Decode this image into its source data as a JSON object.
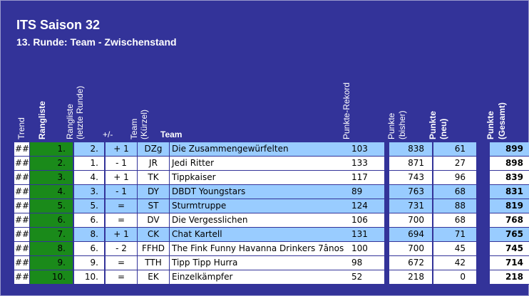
{
  "header": {
    "title": "ITS Saison 32",
    "subtitle": "13. Runde: Team - Zwischenstand"
  },
  "columns": {
    "trend": "Trend",
    "rangliste": "Rangliste",
    "letzte_1": "Rangliste",
    "letzte_2": "(letzte Runde)",
    "diff": "+/-",
    "kurz_1": "Team",
    "kurz_2": "(Kürzel)",
    "team": "Team",
    "rekord": "Punkte-Rekord",
    "bisher_1": "Punkte",
    "bisher_2": "(bisher)",
    "neu_1": "Punkte",
    "neu_2": "(neu)",
    "gesamt_1": "Punkte",
    "gesamt_2": "(Gesamt)"
  },
  "rows": [
    {
      "trend": "##",
      "rank": "1.",
      "prev": "2.",
      "diff": "+ 1",
      "kurz": "DZg",
      "team": "Die Zusammengewürfelten",
      "rekord": "103",
      "bisher": "838",
      "neu": "61",
      "gesamt": "899",
      "style": "blue"
    },
    {
      "trend": "##",
      "rank": "2.",
      "prev": "1.",
      "diff": "- 1",
      "kurz": "JR",
      "team": "Jedi Ritter",
      "rekord": "133",
      "bisher": "871",
      "neu": "27",
      "gesamt": "898",
      "style": "light"
    },
    {
      "trend": "##",
      "rank": "3.",
      "prev": "4.",
      "diff": "+ 1",
      "kurz": "TK",
      "team": "Tippkaiser",
      "rekord": "117",
      "bisher": "743",
      "neu": "96",
      "gesamt": "839",
      "style": "light"
    },
    {
      "trend": "##",
      "rank": "4.",
      "prev": "3.",
      "diff": "- 1",
      "kurz": "DY",
      "team": "DBDT Youngstars",
      "rekord": "89",
      "bisher": "763",
      "neu": "68",
      "gesamt": "831",
      "style": "blue"
    },
    {
      "trend": "##",
      "rank": "5.",
      "prev": "5.",
      "diff": "=",
      "kurz": "ST",
      "team": "Sturmtruppe",
      "rekord": "124",
      "bisher": "731",
      "neu": "88",
      "gesamt": "819",
      "style": "blue"
    },
    {
      "trend": "##",
      "rank": "6.",
      "prev": "6.",
      "diff": "=",
      "kurz": "DV",
      "team": "Die Vergesslichen",
      "rekord": "106",
      "bisher": "700",
      "neu": "68",
      "gesamt": "768",
      "style": "light"
    },
    {
      "trend": "##",
      "rank": "7.",
      "prev": "8.",
      "diff": "+ 1",
      "kurz": "CK",
      "team": "Chat Kartell",
      "rekord": "131",
      "bisher": "694",
      "neu": "71",
      "gesamt": "765",
      "style": "blue"
    },
    {
      "trend": "##",
      "rank": "8.",
      "prev": "6.",
      "diff": "- 2",
      "kurz": "FFHD",
      "team": "The Fink Funny Havanna Drinkers 7ânos",
      "rekord": "100",
      "bisher": "700",
      "neu": "45",
      "gesamt": "745",
      "style": "light"
    },
    {
      "trend": "##",
      "rank": "9.",
      "prev": "9.",
      "diff": "=",
      "kurz": "TTH",
      "team": "Tipp Tipp Hurra",
      "rekord": "98",
      "bisher": "672",
      "neu": "42",
      "gesamt": "714",
      "style": "light"
    },
    {
      "trend": "##",
      "rank": "10.",
      "prev": "10.",
      "diff": "=",
      "kurz": "EK",
      "team": "Einzelkämpfer",
      "rekord": "52",
      "bisher": "218",
      "neu": "0",
      "gesamt": "218",
      "style": "light"
    }
  ]
}
